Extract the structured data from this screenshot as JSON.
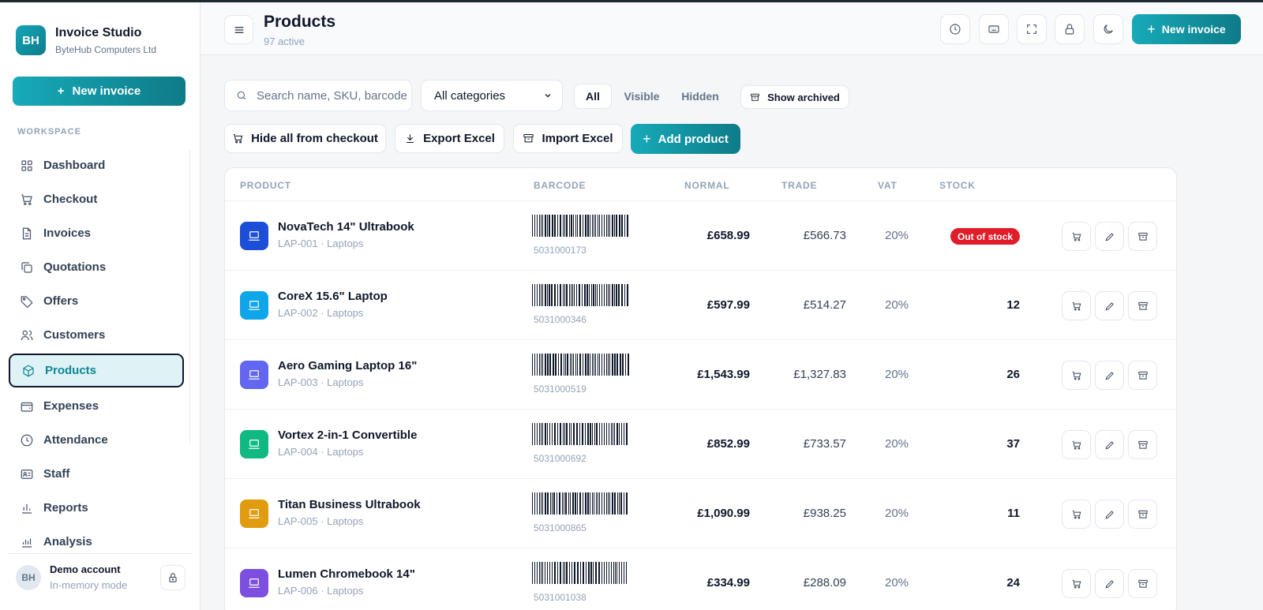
{
  "brand": {
    "initials": "BH",
    "name": "Invoice Studio",
    "company": "ByteHub Computers Ltd"
  },
  "sidebar": {
    "new_invoice_label": "New invoice",
    "section_label": "WORKSPACE",
    "items": [
      {
        "label": "Dashboard",
        "icon": "grid-icon"
      },
      {
        "label": "Checkout",
        "icon": "cart-icon"
      },
      {
        "label": "Invoices",
        "icon": "document-icon"
      },
      {
        "label": "Quotations",
        "icon": "copy-icon"
      },
      {
        "label": "Offers",
        "icon": "tag-icon"
      },
      {
        "label": "Customers",
        "icon": "users-icon"
      },
      {
        "label": "Products",
        "icon": "box-icon",
        "active": true
      },
      {
        "label": "Expenses",
        "icon": "wallet-icon"
      },
      {
        "label": "Attendance",
        "icon": "clock-icon"
      },
      {
        "label": "Staff",
        "icon": "id-card-icon"
      },
      {
        "label": "Reports",
        "icon": "bar-chart-icon"
      },
      {
        "label": "Analysis",
        "icon": "analytics-icon"
      }
    ],
    "account": {
      "initials": "BH",
      "name": "Demo account",
      "mode": "In-memory mode"
    }
  },
  "header": {
    "title": "Products",
    "subtitle": "97 active",
    "new_invoice_label": "New invoice"
  },
  "filters": {
    "search_placeholder": "Search name, SKU, barcode",
    "category_selected": "All categories",
    "segments": [
      "All",
      "Visible",
      "Hidden"
    ],
    "active_segment": "All",
    "show_archived_label": "Show archived"
  },
  "actions": {
    "hide_all_label": "Hide all from checkout",
    "export_label": "Export Excel",
    "import_label": "Import Excel",
    "add_product_label": "Add product"
  },
  "table": {
    "columns": [
      "PRODUCT",
      "BARCODE",
      "NORMAL",
      "TRADE",
      "VAT",
      "STOCK"
    ],
    "rows": [
      {
        "name": "NovaTech 14\" Ultrabook",
        "meta": "LAP-001 · Laptops",
        "barcode": "5031000173",
        "normal": "£658.99",
        "trade": "£566.73",
        "vat": "20%",
        "stock": "Out of stock",
        "out_of_stock": true,
        "color": "#1d4ed8"
      },
      {
        "name": "CoreX 15.6\" Laptop",
        "meta": "LAP-002 · Laptops",
        "barcode": "5031000346",
        "normal": "£597.99",
        "trade": "£514.27",
        "vat": "20%",
        "stock": "12",
        "out_of_stock": false,
        "color": "#0ea5e9"
      },
      {
        "name": "Aero Gaming Laptop 16\"",
        "meta": "LAP-003 · Laptops",
        "barcode": "5031000519",
        "normal": "£1,543.99",
        "trade": "£1,327.83",
        "vat": "20%",
        "stock": "26",
        "out_of_stock": false,
        "color": "#6366f1"
      },
      {
        "name": "Vortex 2-in-1 Convertible",
        "meta": "LAP-004 · Laptops",
        "barcode": "5031000692",
        "normal": "£852.99",
        "trade": "£733.57",
        "vat": "20%",
        "stock": "37",
        "out_of_stock": false,
        "color": "#10b981"
      },
      {
        "name": "Titan Business Ultrabook",
        "meta": "LAP-005 · Laptops",
        "barcode": "5031000865",
        "normal": "£1,090.99",
        "trade": "£938.25",
        "vat": "20%",
        "stock": "11",
        "out_of_stock": false,
        "color": "#e09b0f"
      },
      {
        "name": "Lumen Chromebook 14\"",
        "meta": "LAP-006 · Laptops",
        "barcode": "5031001038",
        "normal": "£334.99",
        "trade": "£288.09",
        "vat": "20%",
        "stock": "24",
        "out_of_stock": false,
        "color": "#7c4fe0"
      }
    ]
  }
}
